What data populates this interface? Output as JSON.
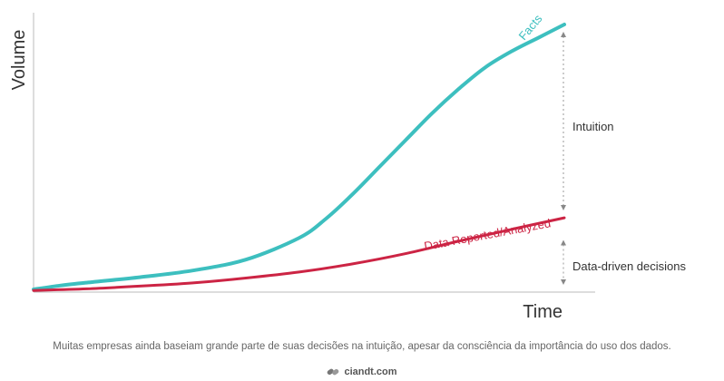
{
  "chart_data": {
    "type": "line",
    "xlabel": "Time",
    "ylabel": "Volume",
    "series": [
      {
        "name": "Facts",
        "color": "#3dbfbf",
        "x": [
          0,
          5,
          10,
          20,
          30,
          40,
          50,
          55,
          60,
          65,
          70,
          75,
          80,
          85,
          90,
          95,
          100
        ],
        "y": [
          1,
          2.4,
          3.5,
          5.5,
          8,
          12,
          20,
          27,
          36,
          46,
          56,
          66,
          75,
          83,
          89,
          94,
          99
        ]
      },
      {
        "name": "Data Reported/Analyzed",
        "color": "#cc2444",
        "x": [
          0,
          10,
          20,
          30,
          40,
          50,
          60,
          70,
          80,
          90,
          100
        ],
        "y": [
          0.6,
          1.2,
          2.2,
          3.4,
          5.2,
          7.4,
          10.4,
          14.2,
          18.8,
          23.2,
          27.5
        ]
      }
    ],
    "annotations": [
      {
        "label": "Intuition",
        "from_y": 99,
        "to_y": 27.5
      },
      {
        "label": "Data-driven decisions",
        "from_y": 22,
        "to_y": 0
      }
    ]
  },
  "caption": "Muitas empresas ainda baseiam grande parte de suas decisões na intuição, apesar da consciência da importância do uso dos dados.",
  "brand": "ciandt.com"
}
